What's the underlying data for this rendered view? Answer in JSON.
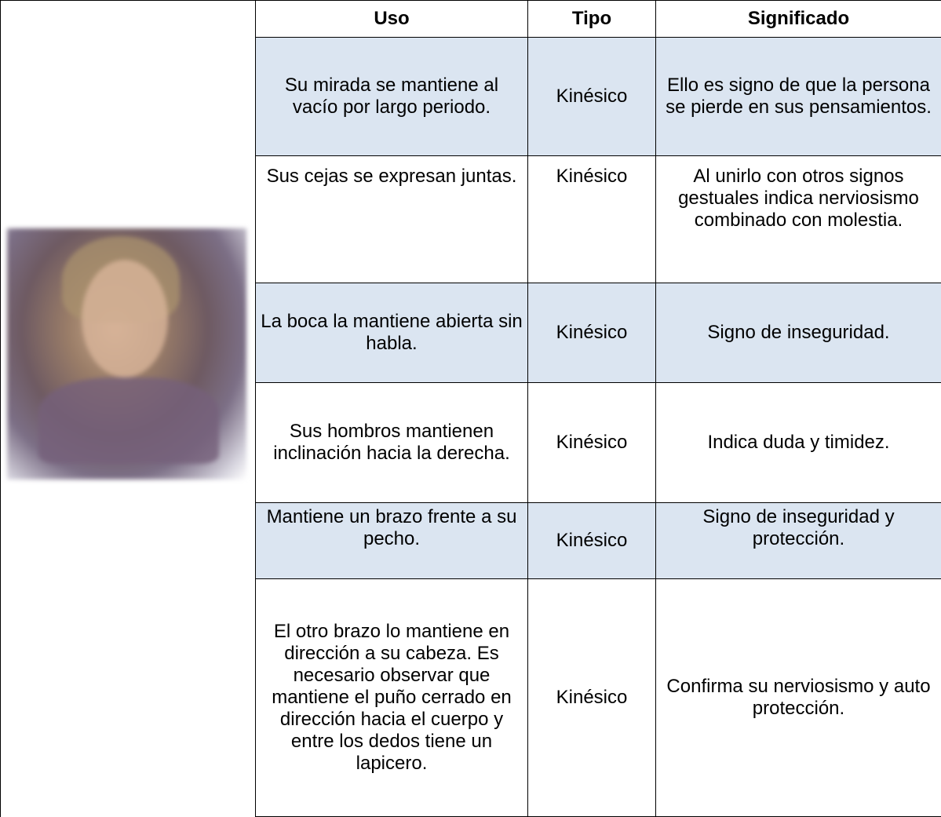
{
  "table": {
    "headers": [
      "Uso",
      "Tipo",
      "Significado"
    ],
    "rows": [
      [
        "Su mirada se mantiene al vacío por largo periodo.",
        "Kinésico",
        "Ello es signo de que la persona se pierde en sus pensamientos."
      ],
      [
        "Sus cejas se expresan juntas.",
        "Kinésico",
        "Al unirlo con otros signos gestuales indica nerviosismo combinado con molestia."
      ],
      [
        "La boca la mantiene abierta sin habla.",
        "Kinésico",
        "Signo de inseguridad."
      ],
      [
        "Sus hombros mantienen inclinación hacia la derecha.",
        "Kinésico",
        "Indica duda y timidez."
      ],
      [
        "Mantiene un brazo frente a su pecho.",
        "Kinésico",
        "Signo de inseguridad y protección."
      ],
      [
        "El otro brazo lo mantiene en dirección a su cabeza. Es necesario observar que mantiene el puño cerrado en dirección hacia el cuerpo y entre los dedos tiene un lapicero.",
        "Kinésico",
        "Confirma su nerviosismo y auto protección."
      ]
    ]
  }
}
